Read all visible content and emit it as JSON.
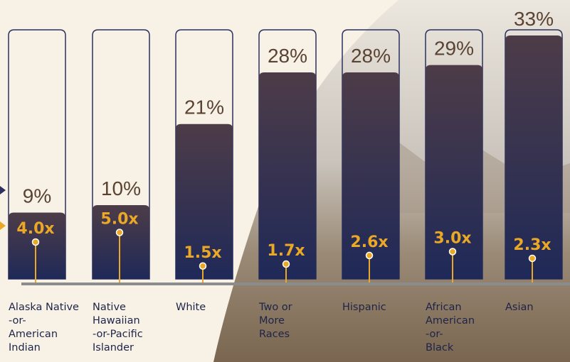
{
  "chart_data": {
    "type": "bar",
    "categories": [
      [
        "Alaska Native",
        "-or-",
        "American",
        "Indian"
      ],
      [
        "Native",
        "Hawaiian",
        "-or-Pacific",
        "Islander"
      ],
      [
        "White"
      ],
      [
        "Two or",
        "More",
        "Races"
      ],
      [
        "Hispanic"
      ],
      [
        "African",
        "American",
        "-or-",
        "Black"
      ],
      [
        "Asian"
      ]
    ],
    "series": [
      {
        "values": [
          9,
          10,
          21,
          28,
          28,
          29,
          33
        ],
        "value_labels": [
          "9%",
          "10%",
          "21%",
          "28%",
          "28%",
          "29%",
          "33%"
        ],
        "color": "#2b3060"
      },
      {
        "values": [
          4.0,
          5.0,
          1.5,
          1.7,
          2.6,
          3.0,
          2.3
        ],
        "value_labels": [
          "4.0x",
          "5.0x",
          "1.5x",
          "1.7x",
          "2.6x",
          "3.0x",
          "2.3x"
        ],
        "color": "#eaa826"
      }
    ],
    "ylim": [
      0,
      33
    ]
  }
}
